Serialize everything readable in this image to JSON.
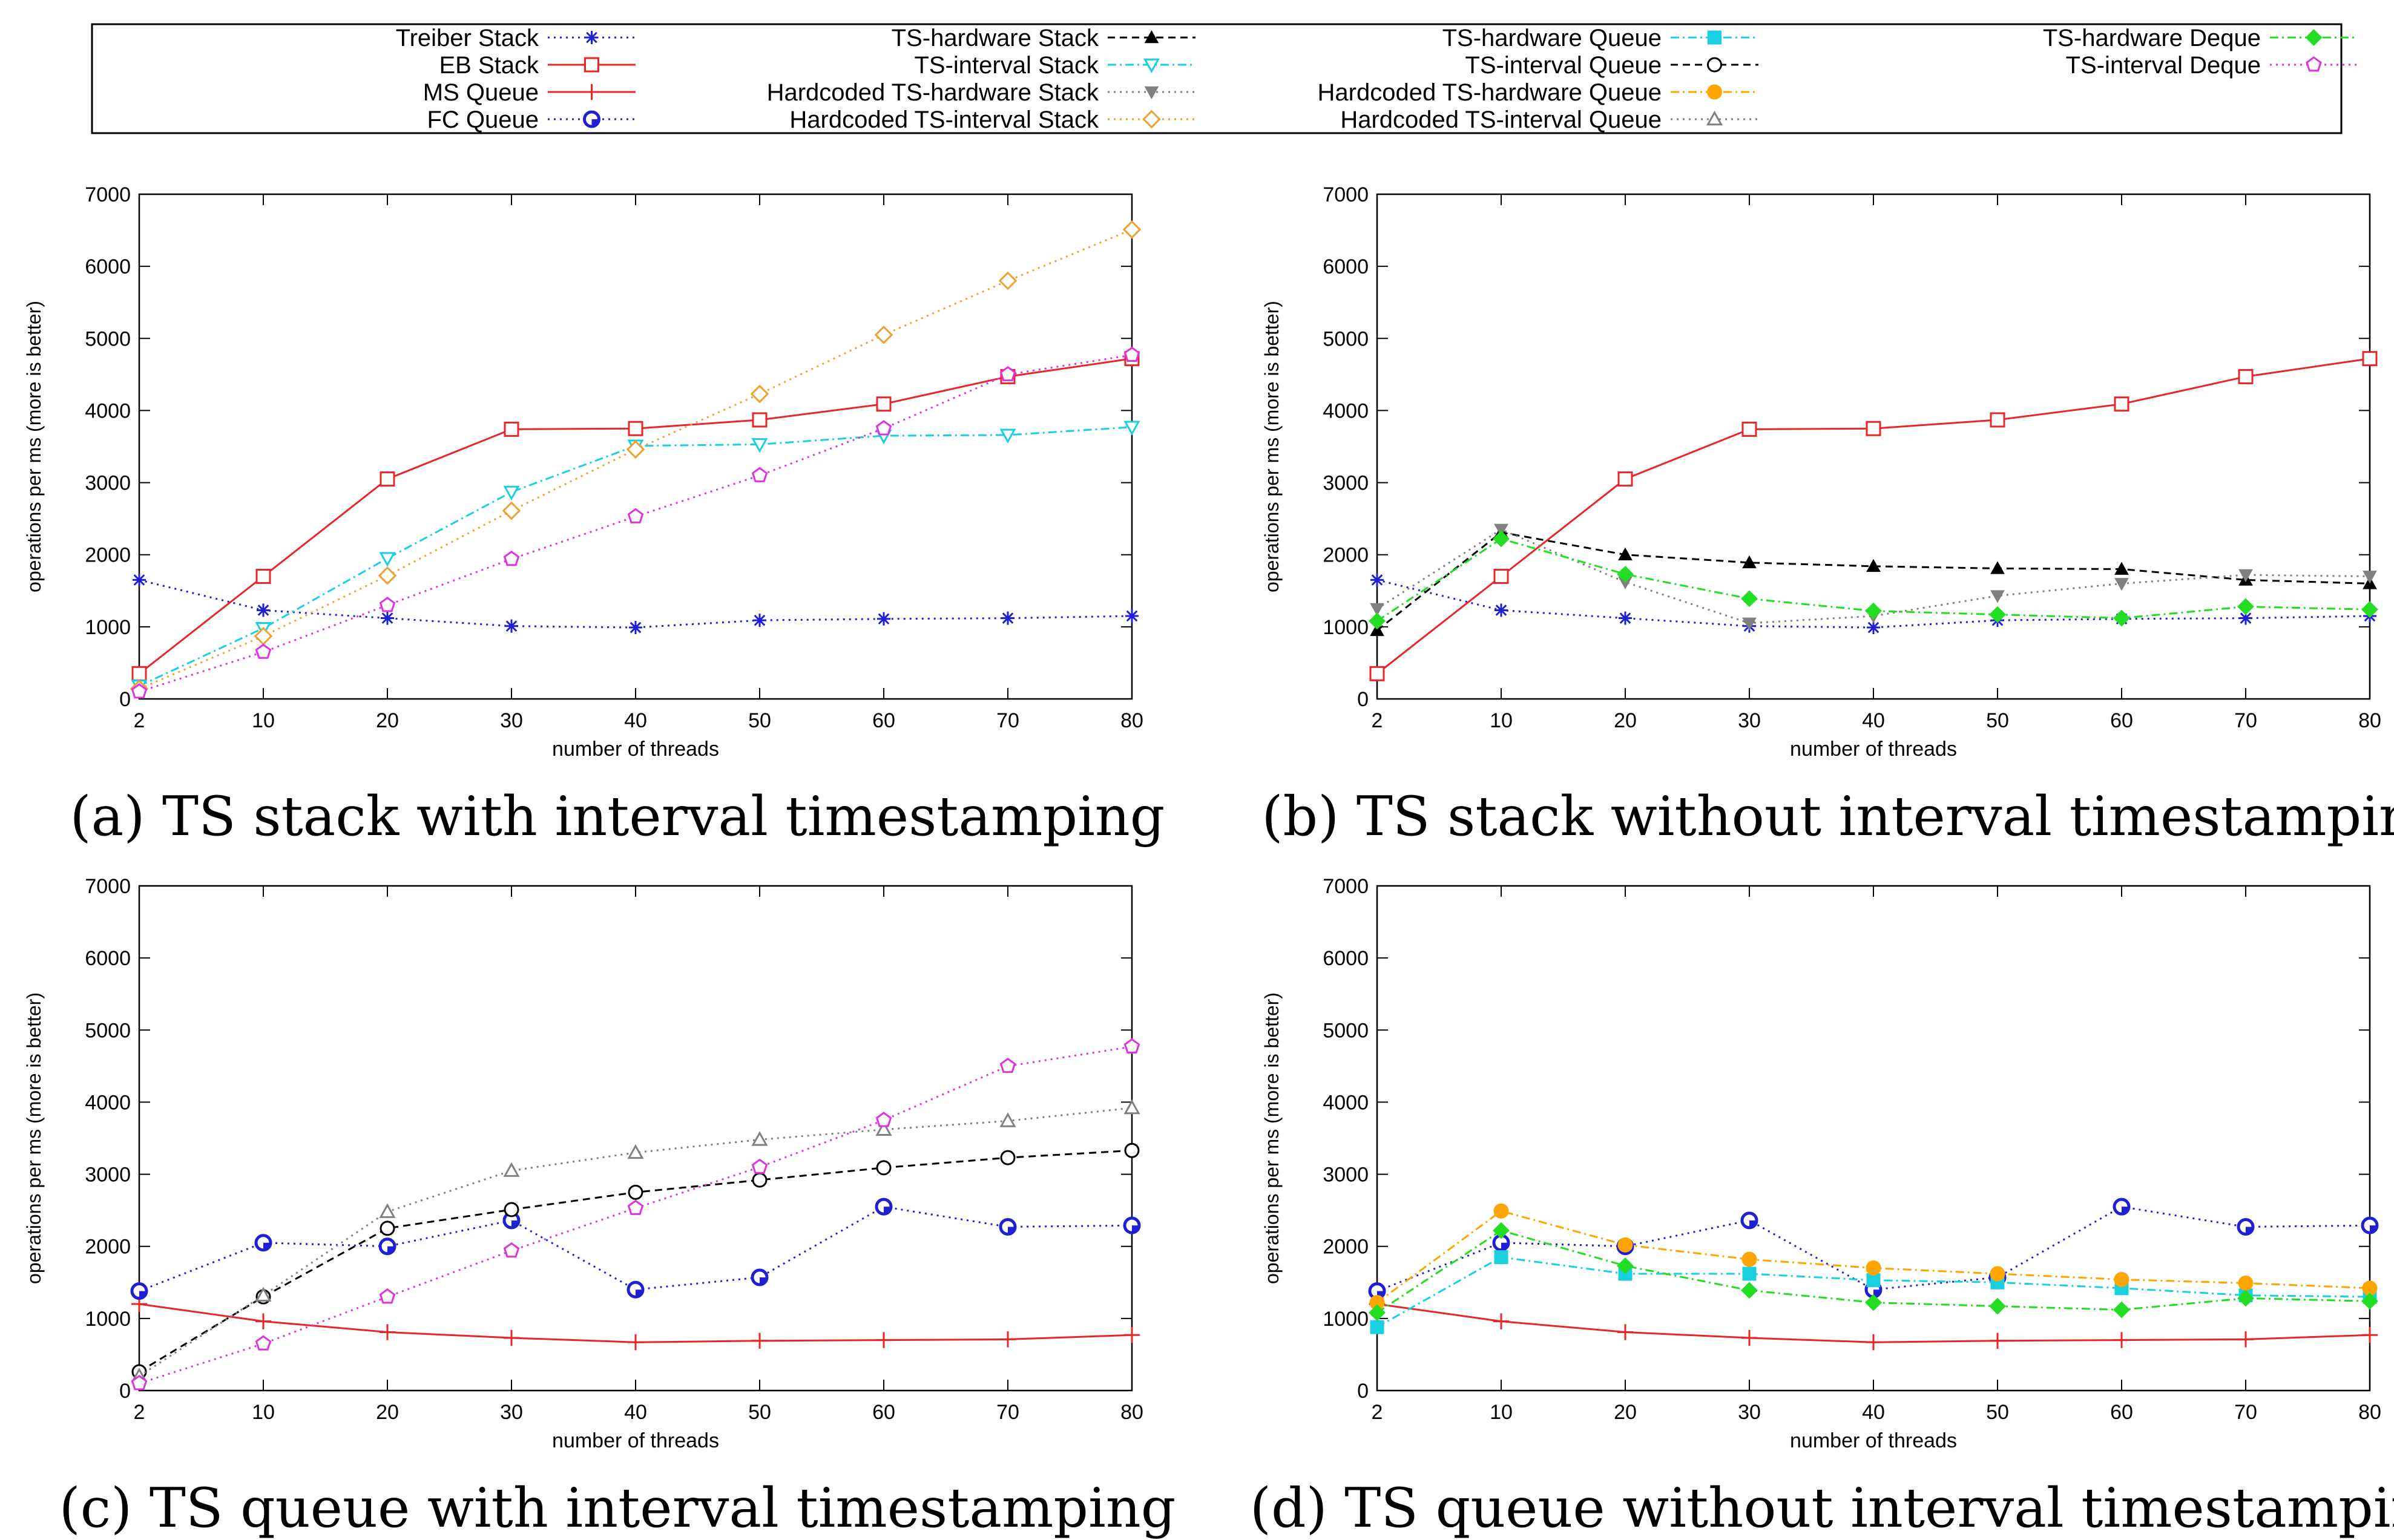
{
  "legend": {
    "entries": [
      {
        "key": "treiber_stack",
        "label": "Treiber Stack",
        "color": "#1f1fd6",
        "dash": "dotted",
        "marker": "asterisk"
      },
      {
        "key": "eb_stack",
        "label": "EB Stack",
        "color": "#e8262a",
        "dash": "solid",
        "marker": "square-open"
      },
      {
        "key": "ms_queue",
        "label": "MS Queue",
        "color": "#e8262a",
        "dash": "solid",
        "marker": "plus"
      },
      {
        "key": "fc_queue",
        "label": "FC Queue",
        "color": "#1f1fd6",
        "dash": "dotted",
        "marker": "circle-blue"
      },
      {
        "key": "ts_hw_stack",
        "label": "TS-hardware Stack",
        "color": "#000000",
        "dash": "dashed",
        "marker": "triangle-filled"
      },
      {
        "key": "ts_int_stack",
        "label": "TS-interval Stack",
        "color": "#19d0e0",
        "dash": "dashdot",
        "marker": "triangle-down-open"
      },
      {
        "key": "hc_ts_hw_stack",
        "label": "Hardcoded TS-hardware Stack",
        "color": "#808080",
        "dash": "dotted",
        "marker": "triangle-down-filled"
      },
      {
        "key": "hc_ts_int_stack",
        "label": "Hardcoded TS-interval Stack",
        "color": "#f0a030",
        "dash": "dotted",
        "marker": "diamond-open"
      },
      {
        "key": "ts_hw_queue",
        "label": "TS-hardware Queue",
        "color": "#19d0e0",
        "dash": "dashdot",
        "marker": "square-filled"
      },
      {
        "key": "ts_int_queue",
        "label": "TS-interval Queue",
        "color": "#000000",
        "dash": "dashed",
        "marker": "circle-open"
      },
      {
        "key": "hc_ts_hw_queue",
        "label": "Hardcoded TS-hardware Queue",
        "color": "#ffa500",
        "dash": "dashdot",
        "marker": "circle-filled"
      },
      {
        "key": "hc_ts_int_queue",
        "label": "Hardcoded TS-interval Queue",
        "color": "#808080",
        "dash": "dotted",
        "marker": "triangle-open"
      },
      {
        "key": "ts_hw_deque",
        "label": "TS-hardware Deque",
        "color": "#22dd22",
        "dash": "dashdot",
        "marker": "diamond-filled"
      },
      {
        "key": "ts_int_deque",
        "label": "TS-interval Deque",
        "color": "#e030e0",
        "dash": "dotted",
        "marker": "pentagon-open"
      }
    ]
  },
  "chart_data": [
    {
      "type": "line",
      "caption": "(a) TS stack with interval timestamping",
      "xlabel": "number of threads",
      "ylabel": "operations per ms (more is better)",
      "categories": [
        "2",
        "10",
        "20",
        "30",
        "40",
        "50",
        "60",
        "70",
        "80"
      ],
      "ylim": [
        0,
        7000
      ],
      "yticks": [
        0,
        1000,
        2000,
        3000,
        4000,
        5000,
        6000,
        7000
      ],
      "grid": false,
      "series": [
        {
          "key": "treiber_stack",
          "name": "Treiber Stack",
          "values": [
            1650,
            1230,
            1120,
            1010,
            990,
            1090,
            1110,
            1120,
            1150
          ]
        },
        {
          "key": "eb_stack",
          "name": "EB Stack",
          "values": [
            350,
            1700,
            3050,
            3740,
            3750,
            3870,
            4090,
            4470,
            4720
          ]
        },
        {
          "key": "ts_int_stack",
          "name": "TS-interval Stack",
          "values": [
            180,
            980,
            1950,
            2870,
            3510,
            3530,
            3650,
            3660,
            3770
          ]
        },
        {
          "key": "hc_ts_int_stack",
          "name": "Hardcoded TS-interval Stack",
          "values": [
            140,
            870,
            1710,
            2610,
            3460,
            4230,
            5050,
            5800,
            6510
          ]
        },
        {
          "key": "ts_int_deque",
          "name": "TS-interval Deque",
          "values": [
            100,
            650,
            1300,
            1940,
            2530,
            3100,
            3750,
            4500,
            4770
          ]
        }
      ]
    },
    {
      "type": "line",
      "caption": "(b) TS stack without interval timestamping",
      "xlabel": "number of threads",
      "ylabel": "operations per ms (more is better)",
      "categories": [
        "2",
        "10",
        "20",
        "30",
        "40",
        "50",
        "60",
        "70",
        "80"
      ],
      "ylim": [
        0,
        7000
      ],
      "yticks": [
        0,
        1000,
        2000,
        3000,
        4000,
        5000,
        6000,
        7000
      ],
      "grid": false,
      "series": [
        {
          "key": "treiber_stack",
          "name": "Treiber Stack",
          "values": [
            1650,
            1230,
            1120,
            1010,
            990,
            1090,
            1110,
            1120,
            1150
          ]
        },
        {
          "key": "eb_stack",
          "name": "EB Stack",
          "values": [
            350,
            1700,
            3050,
            3740,
            3750,
            3870,
            4090,
            4470,
            4720
          ]
        },
        {
          "key": "ts_hw_stack",
          "name": "TS-hardware Stack",
          "values": [
            950,
            2310,
            2000,
            1890,
            1840,
            1810,
            1800,
            1650,
            1600
          ]
        },
        {
          "key": "hc_ts_hw_stack",
          "name": "Hardcoded TS-hardware Stack",
          "values": [
            1250,
            2350,
            1620,
            1050,
            1150,
            1430,
            1600,
            1720,
            1700
          ]
        },
        {
          "key": "ts_hw_deque",
          "name": "TS-hardware Deque",
          "values": [
            1080,
            2220,
            1730,
            1390,
            1220,
            1170,
            1120,
            1280,
            1240
          ]
        }
      ]
    },
    {
      "type": "line",
      "caption": "(c) TS queue with interval timestamping",
      "xlabel": "number of threads",
      "ylabel": "operations per ms (more is better)",
      "categories": [
        "2",
        "10",
        "20",
        "30",
        "40",
        "50",
        "60",
        "70",
        "80"
      ],
      "ylim": [
        0,
        7000
      ],
      "yticks": [
        0,
        1000,
        2000,
        3000,
        4000,
        5000,
        6000,
        7000
      ],
      "grid": false,
      "series": [
        {
          "key": "ms_queue",
          "name": "MS Queue",
          "values": [
            1200,
            960,
            810,
            730,
            670,
            690,
            700,
            710,
            770
          ]
        },
        {
          "key": "fc_queue",
          "name": "FC Queue",
          "values": [
            1380,
            2050,
            2000,
            2360,
            1400,
            1570,
            2550,
            2270,
            2290
          ]
        },
        {
          "key": "ts_int_queue",
          "name": "TS-interval Queue",
          "values": [
            260,
            1300,
            2250,
            2510,
            2750,
            2920,
            3090,
            3230,
            3330
          ]
        },
        {
          "key": "hc_ts_int_queue",
          "name": "Hardcoded TS-interval Queue",
          "values": [
            200,
            1320,
            2480,
            3050,
            3300,
            3480,
            3620,
            3740,
            3920
          ]
        },
        {
          "key": "ts_int_deque",
          "name": "TS-interval Deque",
          "values": [
            100,
            650,
            1300,
            1940,
            2530,
            3100,
            3750,
            4500,
            4770
          ]
        }
      ]
    },
    {
      "type": "line",
      "caption": "(d) TS queue without interval timestamping",
      "xlabel": "number of threads",
      "ylabel": "operations per ms (more is better)",
      "categories": [
        "2",
        "10",
        "20",
        "30",
        "40",
        "50",
        "60",
        "70",
        "80"
      ],
      "ylim": [
        0,
        7000
      ],
      "yticks": [
        0,
        1000,
        2000,
        3000,
        4000,
        5000,
        6000,
        7000
      ],
      "grid": false,
      "series": [
        {
          "key": "ms_queue",
          "name": "MS Queue",
          "values": [
            1200,
            960,
            810,
            730,
            670,
            690,
            700,
            710,
            770
          ]
        },
        {
          "key": "fc_queue",
          "name": "FC Queue",
          "values": [
            1380,
            2050,
            2000,
            2360,
            1400,
            1570,
            2550,
            2270,
            2290
          ]
        },
        {
          "key": "ts_hw_queue",
          "name": "TS-hardware Queue",
          "values": [
            880,
            1850,
            1620,
            1620,
            1530,
            1500,
            1420,
            1320,
            1300
          ]
        },
        {
          "key": "hc_ts_hw_queue",
          "name": "Hardcoded TS-hardware Queue",
          "values": [
            1220,
            2490,
            2020,
            1820,
            1700,
            1620,
            1540,
            1490,
            1420
          ]
        },
        {
          "key": "ts_hw_deque",
          "name": "TS-hardware Deque",
          "values": [
            1080,
            2220,
            1730,
            1390,
            1220,
            1170,
            1120,
            1280,
            1240
          ]
        }
      ]
    }
  ]
}
